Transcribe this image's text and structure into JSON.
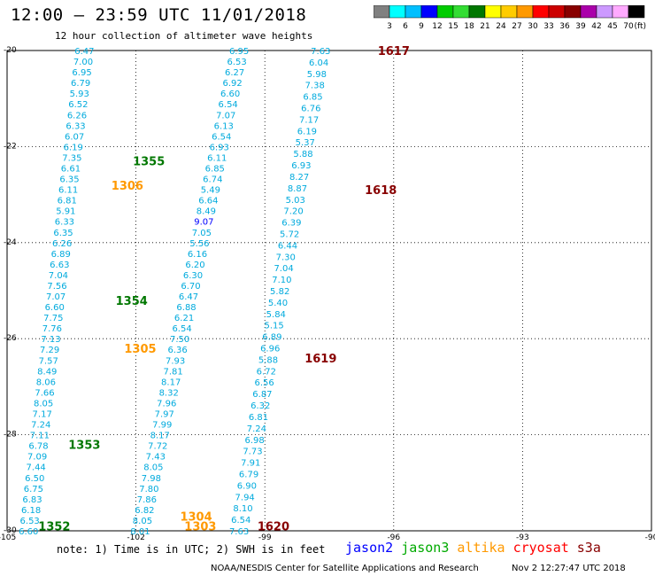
{
  "header": {
    "title": "12:00 – 23:59 UTC 11/01/2018",
    "subtitle": "12 hour collection of altimeter wave heights"
  },
  "colorbar": {
    "labels": [
      "3",
      "6",
      "9",
      "12",
      "15",
      "18",
      "21",
      "24",
      "27",
      "30",
      "33",
      "36",
      "39",
      "42",
      "45",
      "70"
    ],
    "unit": "(ft)",
    "colors": [
      "#808080",
      "#00ffff",
      "#00bfff",
      "#0000ff",
      "#00cc00",
      "#33dd33",
      "#007700",
      "#ffff00",
      "#ffcc00",
      "#ff9900",
      "#ff0000",
      "#cc0000",
      "#880000",
      "#aa00aa",
      "#cc99ff",
      "#ffaaff",
      "#000000"
    ]
  },
  "axes": {
    "x_ticks": [
      "-105",
      "-102",
      "-99",
      "-96",
      "-93",
      "-90"
    ],
    "y_ticks": [
      "-20",
      "-22",
      "-24",
      "-26",
      "-28",
      "-30"
    ],
    "lon_range": [
      -105,
      -90
    ],
    "lat_range": [
      -30,
      -20
    ]
  },
  "passes": [
    {
      "label": "1617",
      "color": "#880000",
      "lon": -96.0,
      "lat": -20.0
    },
    {
      "label": "1355",
      "color": "#007700",
      "lon": -101.7,
      "lat": -22.3
    },
    {
      "label": "1306",
      "color": "#ff9900",
      "lon": -102.2,
      "lat": -22.8
    },
    {
      "label": "1618",
      "color": "#880000",
      "lon": -96.3,
      "lat": -22.9
    },
    {
      "label": "1354",
      "color": "#007700",
      "lon": -102.1,
      "lat": -25.2
    },
    {
      "label": "1305",
      "color": "#ff9900",
      "lon": -101.9,
      "lat": -26.2
    },
    {
      "label": "1619",
      "color": "#880000",
      "lon": -97.7,
      "lat": -26.4
    },
    {
      "label": "1353",
      "color": "#007700",
      "lon": -103.2,
      "lat": -28.2
    },
    {
      "label": "1304",
      "color": "#ff9900",
      "lon": -100.6,
      "lat": -29.7
    },
    {
      "label": "1352",
      "color": "#007700",
      "lon": -103.9,
      "lat": -29.9
    },
    {
      "label": "1303",
      "color": "#ff9900",
      "lon": -100.5,
      "lat": -29.9
    },
    {
      "label": "1620",
      "color": "#880000",
      "lon": -98.8,
      "lat": -29.9
    }
  ],
  "tracks": [
    {
      "name": "A",
      "color": "#00aadd",
      "start": [
        -103.2,
        -20.0
      ],
      "end": [
        -104.5,
        -30.0
      ],
      "values": [
        "6.47",
        "7.00",
        "6.95",
        "6.79",
        "5.93",
        "6.52",
        "6.26",
        "6.33",
        "6.07",
        "6.19",
        "7.35",
        "6.61",
        "6.35",
        "6.11",
        "6.81",
        "5.91",
        "6.33",
        "6.35",
        "6.26",
        "6.89",
        "6.63",
        "7.04",
        "7.56",
        "7.07",
        "6.60",
        "7.75",
        "7.76",
        "7.13",
        "7.29",
        "7.57",
        "8.49",
        "8.06",
        "7.66",
        "8.05",
        "7.17",
        "7.24",
        "7.11",
        "6.78",
        "7.09",
        "7.44",
        "6.50",
        "6.75",
        "6.83",
        "6.18",
        "6.53",
        "6.60"
      ]
    },
    {
      "name": "B",
      "color": "#00aadd",
      "start": [
        -99.6,
        -20.0
      ],
      "end": [
        -101.9,
        -30.0
      ],
      "values": [
        "6.95",
        "6.53",
        "6.27",
        "6.92",
        "6.60",
        "6.54",
        "7.07",
        "6.13",
        "6.54",
        "6.93",
        "6.11",
        "6.85",
        "6.74",
        "5.49",
        "6.64",
        "8.49",
        "9.07",
        "7.05",
        "5.56",
        "6.16",
        "6.20",
        "6.30",
        "6.70",
        "6.47",
        "6.88",
        "6.21",
        "6.54",
        "7.50",
        "6.36",
        "7.93",
        "7.81",
        "8.17",
        "8.32",
        "7.96",
        "7.97",
        "7.99",
        "8.17",
        "7.72",
        "7.43",
        "8.05",
        "7.98",
        "7.80",
        "7.86",
        "6.82",
        "8.05",
        "8.01"
      ]
    },
    {
      "name": "C",
      "color": "#00aadd",
      "start": [
        -97.7,
        -20.0
      ],
      "end": [
        -99.6,
        -30.0
      ],
      "values": [
        "7.63",
        "6.04",
        "5.98",
        "7.38",
        "6.85",
        "6.76",
        "7.17",
        "6.19",
        "5.37",
        "5.88",
        "6.93",
        "8.27",
        "8.87",
        "5.03",
        "7.20",
        "6.39",
        "5.72",
        "6.44",
        "7.30",
        "7.04",
        "7.10",
        "5.82",
        "5.40",
        "5.84",
        "5.15",
        "6.89",
        "6.96",
        "5.88",
        "6.72",
        "6.56",
        "6.87",
        "6.32",
        "6.81",
        "7.24",
        "6.98",
        "7.73",
        "7.91",
        "6.79",
        "6.90",
        "7.94",
        "8.10",
        "6.54",
        "7.63"
      ]
    }
  ],
  "footer": {
    "note": "note:  1) Time is in UTC;  2) SWH is in feet",
    "legend": [
      {
        "label": "jason2",
        "color": "#0000ff"
      },
      {
        "label": "jason3",
        "color": "#00aa00"
      },
      {
        "label": "altika",
        "color": "#ff9900"
      },
      {
        "label": "cryosat",
        "color": "#ff0000"
      },
      {
        "label": "s3a",
        "color": "#880000"
      }
    ],
    "credit": "NOAA/NESDIS Center for Satellite Applications and Research",
    "timestamp": "Nov  2 12:27:47 UTC 2018"
  }
}
